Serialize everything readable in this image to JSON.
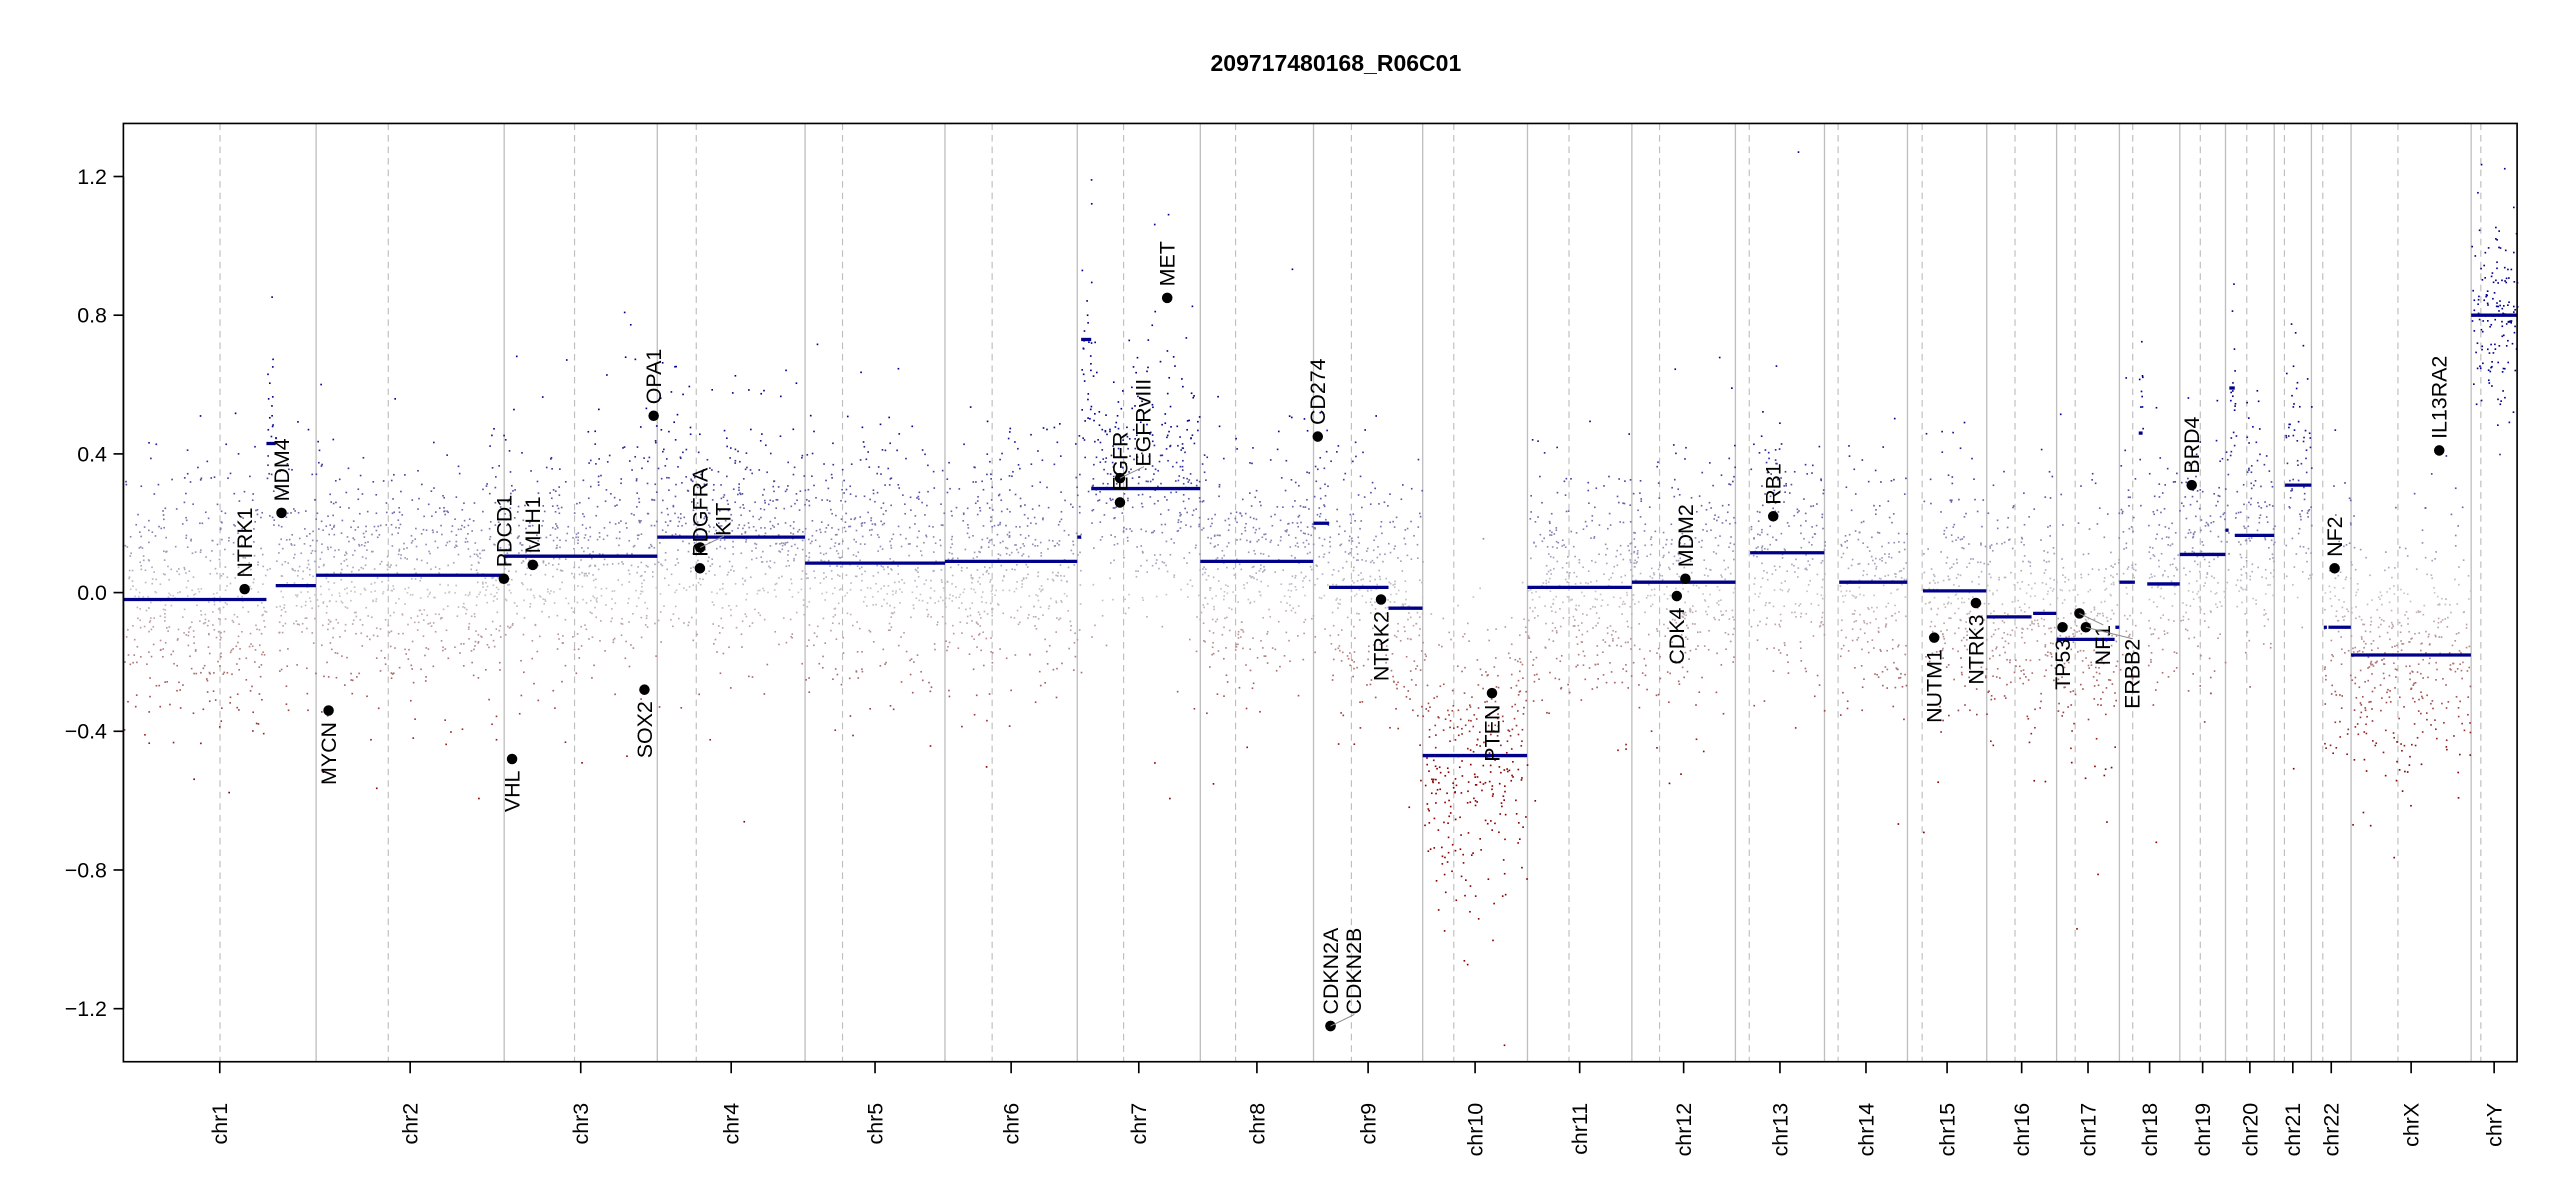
{
  "chart_data": {
    "type": "scatter",
    "title": "209717480168_R06C01",
    "xlabel": "",
    "ylabel": "",
    "ylim": [
      -1.353,
      1.353
    ],
    "yticks": [
      -1.2,
      -0.8,
      -0.4,
      0.0,
      0.4,
      0.8,
      1.2
    ],
    "ytick_labels": [
      "−1.2",
      "−0.8",
      "−0.4",
      "0.0",
      "0.4",
      "0.8",
      "1.2"
    ],
    "x_units": "Mb (cumulative genome position)",
    "grid": false,
    "colors": {
      "gain": "#00008b",
      "neutral": "#c8c8c8",
      "loss": "#8b0000",
      "segment": "#00008b",
      "boundary": "#bebebe",
      "centromere": "#bebebe",
      "gene": "#000000"
    },
    "chromosomes": [
      {
        "name": "chr1",
        "length": 249.25,
        "centromere": 125.0
      },
      {
        "name": "chr2",
        "length": 243.2,
        "centromere": 93.3
      },
      {
        "name": "chr3",
        "length": 198.0,
        "centromere": 91.0
      },
      {
        "name": "chr4",
        "length": 191.15,
        "centromere": 50.4
      },
      {
        "name": "chr5",
        "length": 180.9,
        "centromere": 48.4
      },
      {
        "name": "chr6",
        "length": 171.1,
        "centromere": 61.0
      },
      {
        "name": "chr7",
        "length": 159.1,
        "centromere": 59.9
      },
      {
        "name": "chr8",
        "length": 146.4,
        "centromere": 45.6
      },
      {
        "name": "chr9",
        "length": 141.2,
        "centromere": 49.0
      },
      {
        "name": "chr10",
        "length": 135.5,
        "centromere": 40.2
      },
      {
        "name": "chr11",
        "length": 135.0,
        "centromere": 53.7
      },
      {
        "name": "chr12",
        "length": 133.9,
        "centromere": 35.8
      },
      {
        "name": "chr13",
        "length": 115.2,
        "centromere": 17.9
      },
      {
        "name": "chr14",
        "length": 107.3,
        "centromere": 17.6
      },
      {
        "name": "chr15",
        "length": 102.5,
        "centromere": 19.0
      },
      {
        "name": "chr16",
        "length": 90.4,
        "centromere": 36.6
      },
      {
        "name": "chr17",
        "length": 81.2,
        "centromere": 24.0
      },
      {
        "name": "chr18",
        "length": 78.1,
        "centromere": 17.2
      },
      {
        "name": "chr19",
        "length": 59.1,
        "centromere": 26.5
      },
      {
        "name": "chr20",
        "length": 63.0,
        "centromere": 27.5
      },
      {
        "name": "chr21",
        "length": 48.1,
        "centromere": 13.2
      },
      {
        "name": "chr22",
        "length": 51.3,
        "centromere": 14.7
      },
      {
        "name": "chrX",
        "length": 155.3,
        "centromere": 60.6
      },
      {
        "name": "chrY",
        "length": 59.4,
        "centromere": 12.5
      }
    ],
    "segments": [
      {
        "chr": "chr1",
        "start": 0,
        "end": 185,
        "value": -0.02
      },
      {
        "chr": "chr1",
        "start": 185,
        "end": 197,
        "value": 0.43
      },
      {
        "chr": "chr1",
        "start": 197,
        "end": 249,
        "value": 0.02
      },
      {
        "chr": "chr2",
        "start": 0,
        "end": 243,
        "value": 0.05
      },
      {
        "chr": "chr3",
        "start": 0,
        "end": 198,
        "value": 0.105
      },
      {
        "chr": "chr4",
        "start": 0,
        "end": 191,
        "value": 0.16
      },
      {
        "chr": "chr5",
        "start": 0,
        "end": 181,
        "value": 0.085
      },
      {
        "chr": "chr6",
        "start": 0,
        "end": 171,
        "value": 0.09
      },
      {
        "chr": "chr7",
        "start": 0,
        "end": 5,
        "value": 0.16
      },
      {
        "chr": "chr7",
        "start": 5,
        "end": 18,
        "value": 0.73
      },
      {
        "chr": "chr7",
        "start": 18,
        "end": 159,
        "value": 0.3
      },
      {
        "chr": "chr8",
        "start": 0,
        "end": 146,
        "value": 0.09
      },
      {
        "chr": "chr9",
        "start": 0,
        "end": 20,
        "value": 0.2
      },
      {
        "chr": "chr9",
        "start": 20,
        "end": 97,
        "value": 0.015
      },
      {
        "chr": "chr9",
        "start": 97,
        "end": 141,
        "value": -0.045
      },
      {
        "chr": "chr10",
        "start": 0,
        "end": 135,
        "value": -0.47
      },
      {
        "chr": "chr11",
        "start": 0,
        "end": 135,
        "value": 0.015
      },
      {
        "chr": "chr12",
        "start": 0,
        "end": 134,
        "value": 0.03
      },
      {
        "chr": "chr13",
        "start": 19,
        "end": 115,
        "value": 0.115
      },
      {
        "chr": "chr14",
        "start": 19,
        "end": 107,
        "value": 0.03
      },
      {
        "chr": "chr15",
        "start": 20,
        "end": 102,
        "value": 0.005
      },
      {
        "chr": "chr16",
        "start": 0,
        "end": 58,
        "value": -0.07
      },
      {
        "chr": "chr16",
        "start": 60,
        "end": 90,
        "value": -0.06
      },
      {
        "chr": "chr17",
        "start": 0,
        "end": 75,
        "value": -0.135
      },
      {
        "chr": "chr17",
        "start": 76,
        "end": 81,
        "value": -0.1
      },
      {
        "chr": "chr18",
        "start": 0,
        "end": 20,
        "value": 0.03
      },
      {
        "chr": "chr18",
        "start": 25,
        "end": 30,
        "value": 0.46
      },
      {
        "chr": "chr18",
        "start": 36,
        "end": 78,
        "value": 0.025
      },
      {
        "chr": "chr19",
        "start": 0,
        "end": 59,
        "value": 0.11
      },
      {
        "chr": "chr20",
        "start": 0,
        "end": 4,
        "value": 0.18
      },
      {
        "chr": "chr20",
        "start": 5,
        "end": 12,
        "value": 0.59
      },
      {
        "chr": "chr20",
        "start": 12,
        "end": 63,
        "value": 0.165
      },
      {
        "chr": "chr21",
        "start": 14,
        "end": 48,
        "value": 0.31
      },
      {
        "chr": "chr22",
        "start": 16,
        "end": 20,
        "value": -0.1
      },
      {
        "chr": "chr22",
        "start": 22,
        "end": 51,
        "value": -0.1
      },
      {
        "chr": "chrX",
        "start": 0,
        "end": 155,
        "value": -0.18
      },
      {
        "chr": "chrY",
        "start": 0,
        "end": 59,
        "value": 0.8
      }
    ],
    "genes": [
      {
        "name": "NTRK1",
        "chr": "chr1",
        "pos": 156.8,
        "value": 0.01
      },
      {
        "name": "MDM4",
        "chr": "chr1",
        "pos": 204.5,
        "value": 0.23
      },
      {
        "name": "MYCN",
        "chr": "chr2",
        "pos": 16.1,
        "value": -0.34
      },
      {
        "name": "PDCD1",
        "chr": "chr2",
        "pos": 242.8,
        "value": 0.04
      },
      {
        "name": "VHL",
        "chr": "chr3",
        "pos": 10.2,
        "value": -0.48
      },
      {
        "name": "MLH1",
        "chr": "chr3",
        "pos": 37.0,
        "value": 0.08
      },
      {
        "name": "SOX2",
        "chr": "chr3",
        "pos": 181.4,
        "value": -0.28
      },
      {
        "name": "OPA1",
        "chr": "chr3",
        "pos": 193.3,
        "value": 0.51
      },
      {
        "name": "PDGFRA",
        "chr": "chr4",
        "pos": 55.1,
        "value": 0.07
      },
      {
        "name": "KIT",
        "chr": "chr4",
        "pos": 55.5,
        "value": 0.13
      },
      {
        "name": "EGFR",
        "chr": "chr7",
        "pos": 55.2,
        "value": 0.26
      },
      {
        "name": "EGFRvIII",
        "chr": "chr7",
        "pos": 55.3,
        "value": 0.33
      },
      {
        "name": "MET",
        "chr": "chr7",
        "pos": 116.3,
        "value": 0.85
      },
      {
        "name": "CD274",
        "chr": "chr9",
        "pos": 5.5,
        "value": 0.45
      },
      {
        "name": "CDKN2A",
        "chr": "chr9",
        "pos": 21.97,
        "value": -1.25
      },
      {
        "name": "CDKN2B",
        "chr": "chr9",
        "pos": 22.0,
        "value": -1.25
      },
      {
        "name": "NTRK2",
        "chr": "chr9",
        "pos": 87.3,
        "value": -0.02
      },
      {
        "name": "PTEN",
        "chr": "chr10",
        "pos": 89.6,
        "value": -0.29
      },
      {
        "name": "CDK4",
        "chr": "chr12",
        "pos": 58.1,
        "value": -0.01
      },
      {
        "name": "MDM2",
        "chr": "chr12",
        "pos": 69.2,
        "value": 0.04
      },
      {
        "name": "RB1",
        "chr": "chr13",
        "pos": 48.9,
        "value": 0.22
      },
      {
        "name": "NUTM1",
        "chr": "chr15",
        "pos": 34.6,
        "value": -0.13
      },
      {
        "name": "NTRK3",
        "chr": "chr15",
        "pos": 88.5,
        "value": -0.03
      },
      {
        "name": "TP53",
        "chr": "chr17",
        "pos": 7.6,
        "value": -0.1
      },
      {
        "name": "NF1",
        "chr": "chr17",
        "pos": 29.5,
        "value": -0.06
      },
      {
        "name": "ERBB2",
        "chr": "chr17",
        "pos": 37.8,
        "value": -0.1
      },
      {
        "name": "BRD4",
        "chr": "chr19",
        "pos": 15.4,
        "value": 0.31
      },
      {
        "name": "NF2",
        "chr": "chr22",
        "pos": 30.0,
        "value": 0.07
      },
      {
        "name": "IL13RA2",
        "chr": "chrX",
        "pos": 114.0,
        "value": 0.41
      }
    ]
  }
}
